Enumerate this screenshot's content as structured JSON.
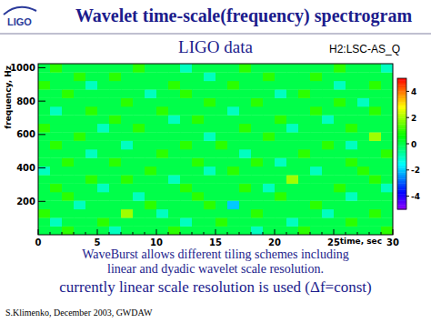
{
  "slide": {
    "logo": "LIGO",
    "title": "Wavelet time-scale(frequency) spectrogram",
    "notes": [
      "WaveBurst allows different tiling schemes including",
      "linear and dyadic wavelet scale resolution.",
      "currently linear scale resolution is used (Δf=const)"
    ],
    "footer": "S.Klimenko, December 2003, GWDAW"
  },
  "chart_data": {
    "type": "heatmap",
    "title": "LIGO data",
    "subtitle": "H2:LSC-AS_Q",
    "x_label": "time, sec",
    "y_label": "frequency, Hz",
    "xlim": [
      0,
      30
    ],
    "ylim": [
      0,
      1024
    ],
    "xticks": [
      0,
      5,
      10,
      15,
      20,
      25,
      30
    ],
    "yticks": [
      200,
      400,
      600,
      800,
      1000
    ],
    "z": [
      [
        0,
        0,
        1,
        0,
        0,
        0,
        -1,
        0,
        0,
        0,
        0,
        1,
        0,
        0,
        0,
        0,
        0,
        0,
        -1,
        0,
        0,
        0,
        1,
        0,
        0,
        0,
        0,
        0,
        0,
        1
      ],
      [
        0,
        -1,
        0,
        0,
        0,
        1,
        0,
        0,
        0,
        0,
        0,
        0,
        -1,
        0,
        0,
        1,
        0,
        0,
        0,
        0,
        0,
        -1,
        0,
        0,
        0,
        0,
        1,
        0,
        0,
        0
      ],
      [
        1,
        0,
        0,
        0,
        0,
        0,
        0,
        2,
        0,
        0,
        -1,
        0,
        0,
        0,
        0,
        0,
        0,
        0,
        1,
        0,
        0,
        0,
        0,
        0,
        -1,
        0,
        0,
        0,
        1,
        0
      ],
      [
        0,
        0,
        0,
        -1,
        0,
        0,
        0,
        0,
        0,
        1,
        0,
        0,
        0,
        0,
        1,
        0,
        -2,
        0,
        0,
        0,
        0,
        0,
        0,
        1,
        0,
        0,
        0,
        0,
        0,
        0
      ],
      [
        0,
        0,
        1,
        0,
        0,
        0,
        0,
        0,
        -1,
        0,
        0,
        0,
        0,
        1,
        0,
        0,
        0,
        0,
        0,
        0,
        1,
        0,
        0,
        0,
        0,
        0,
        -1,
        0,
        0,
        0
      ],
      [
        0,
        1,
        0,
        0,
        0,
        -1,
        0,
        0,
        0,
        0,
        0,
        0,
        1,
        0,
        0,
        0,
        0,
        1,
        0,
        -1,
        0,
        0,
        0,
        0,
        0,
        1,
        0,
        0,
        0,
        -1
      ],
      [
        0,
        0,
        0,
        0,
        1,
        0,
        0,
        1,
        0,
        0,
        0,
        -1,
        0,
        0,
        0,
        0,
        0,
        0,
        0,
        0,
        0,
        2,
        0,
        0,
        0,
        0,
        0,
        0,
        1,
        0
      ],
      [
        -1,
        0,
        0,
        0,
        0,
        0,
        0,
        0,
        0,
        1,
        0,
        0,
        0,
        0,
        -1,
        0,
        1,
        0,
        0,
        0,
        0,
        0,
        0,
        -1,
        0,
        0,
        0,
        1,
        0,
        0
      ],
      [
        0,
        0,
        1,
        0,
        0,
        0,
        1,
        0,
        0,
        0,
        0,
        0,
        0,
        1,
        0,
        0,
        0,
        0,
        1,
        0,
        -1,
        0,
        0,
        0,
        0,
        0,
        1,
        0,
        0,
        0
      ],
      [
        0,
        0,
        0,
        0,
        -1,
        0,
        0,
        0,
        0,
        0,
        1,
        0,
        0,
        0,
        0,
        0,
        0,
        -1,
        0,
        0,
        0,
        0,
        1,
        0,
        0,
        0,
        0,
        0,
        0,
        1
      ],
      [
        0,
        1,
        0,
        0,
        0,
        0,
        0,
        -1,
        0,
        0,
        0,
        0,
        1,
        0,
        0,
        1,
        0,
        0,
        0,
        0,
        0,
        0,
        0,
        0,
        1,
        0,
        -1,
        0,
        0,
        0
      ],
      [
        0,
        0,
        0,
        1,
        0,
        0,
        0,
        0,
        0,
        0,
        0,
        0,
        0,
        0,
        -1,
        0,
        0,
        0,
        0,
        1,
        0,
        0,
        0,
        0,
        0,
        0,
        0,
        0,
        2,
        0
      ],
      [
        1,
        0,
        0,
        0,
        0,
        -1,
        0,
        0,
        1,
        0,
        0,
        0,
        0,
        0,
        0,
        0,
        0,
        1,
        0,
        0,
        0,
        -1,
        0,
        0,
        0,
        0,
        1,
        0,
        0,
        0
      ],
      [
        0,
        0,
        0,
        0,
        0,
        0,
        1,
        0,
        0,
        0,
        0,
        -1,
        0,
        1,
        0,
        0,
        0,
        0,
        0,
        0,
        1,
        0,
        0,
        0,
        -1,
        0,
        0,
        0,
        0,
        0
      ],
      [
        0,
        -1,
        0,
        0,
        1,
        0,
        0,
        0,
        0,
        0,
        1,
        0,
        0,
        0,
        0,
        0,
        -1,
        0,
        0,
        0,
        0,
        0,
        0,
        1,
        0,
        0,
        0,
        0,
        1,
        0
      ],
      [
        0,
        0,
        0,
        0,
        0,
        0,
        0,
        1,
        0,
        0,
        0,
        0,
        0,
        0,
        1,
        0,
        0,
        0,
        1,
        0,
        0,
        0,
        0,
        0,
        0,
        1,
        0,
        -1,
        0,
        0
      ],
      [
        0,
        0,
        1,
        0,
        0,
        0,
        0,
        0,
        0,
        -1,
        0,
        0,
        1,
        0,
        0,
        0,
        0,
        0,
        0,
        0,
        -1,
        0,
        1,
        0,
        0,
        0,
        0,
        0,
        0,
        0
      ],
      [
        1,
        0,
        0,
        0,
        -1,
        0,
        0,
        0,
        0,
        0,
        0,
        1,
        0,
        0,
        0,
        0,
        1,
        0,
        0,
        0,
        0,
        0,
        0,
        0,
        0,
        -1,
        0,
        0,
        1,
        0
      ],
      [
        0,
        0,
        0,
        1,
        0,
        0,
        1,
        0,
        0,
        0,
        0,
        0,
        0,
        0,
        -1,
        0,
        0,
        0,
        0,
        1,
        0,
        0,
        0,
        1,
        0,
        0,
        0,
        0,
        0,
        0
      ],
      [
        0,
        1,
        0,
        0,
        0,
        0,
        0,
        0,
        1,
        0,
        0,
        0,
        -1,
        0,
        0,
        0,
        0,
        1,
        0,
        0,
        0,
        0,
        0,
        0,
        0,
        1,
        0,
        0,
        0,
        -1
      ]
    ],
    "colorbar": {
      "range": [
        -5,
        5
      ],
      "ticks": [
        -4,
        -2,
        0,
        2,
        4
      ]
    }
  }
}
